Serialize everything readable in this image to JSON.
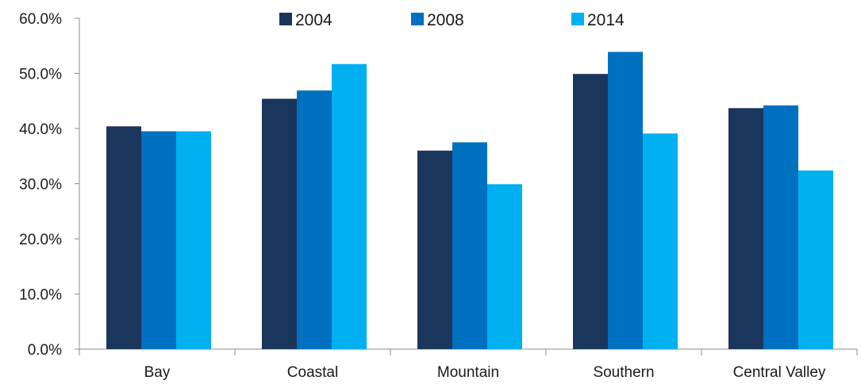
{
  "chart_data": {
    "type": "bar",
    "categories": [
      "Bay",
      "Coastal",
      "Mountain",
      "Southern",
      "Central Valley"
    ],
    "series": [
      {
        "name": "2004",
        "values": [
          40.4,
          45.4,
          36.0,
          49.9,
          43.7
        ]
      },
      {
        "name": "2008",
        "values": [
          39.5,
          46.9,
          37.5,
          53.9,
          44.2
        ]
      },
      {
        "name": "2014",
        "values": [
          39.5,
          51.7,
          29.9,
          39.1,
          32.4
        ]
      }
    ],
    "colors": [
      "#1b365d",
      "#0070c0",
      "#00b0f0"
    ],
    "ylim": [
      0,
      60
    ],
    "yticks": [
      "0.0%",
      "10.0%",
      "20.0%",
      "30.0%",
      "40.0%",
      "50.0%",
      "60.0%"
    ],
    "ytick_values": [
      0,
      10,
      20,
      30,
      40,
      50,
      60
    ],
    "grid": false,
    "legend_position": "top"
  }
}
